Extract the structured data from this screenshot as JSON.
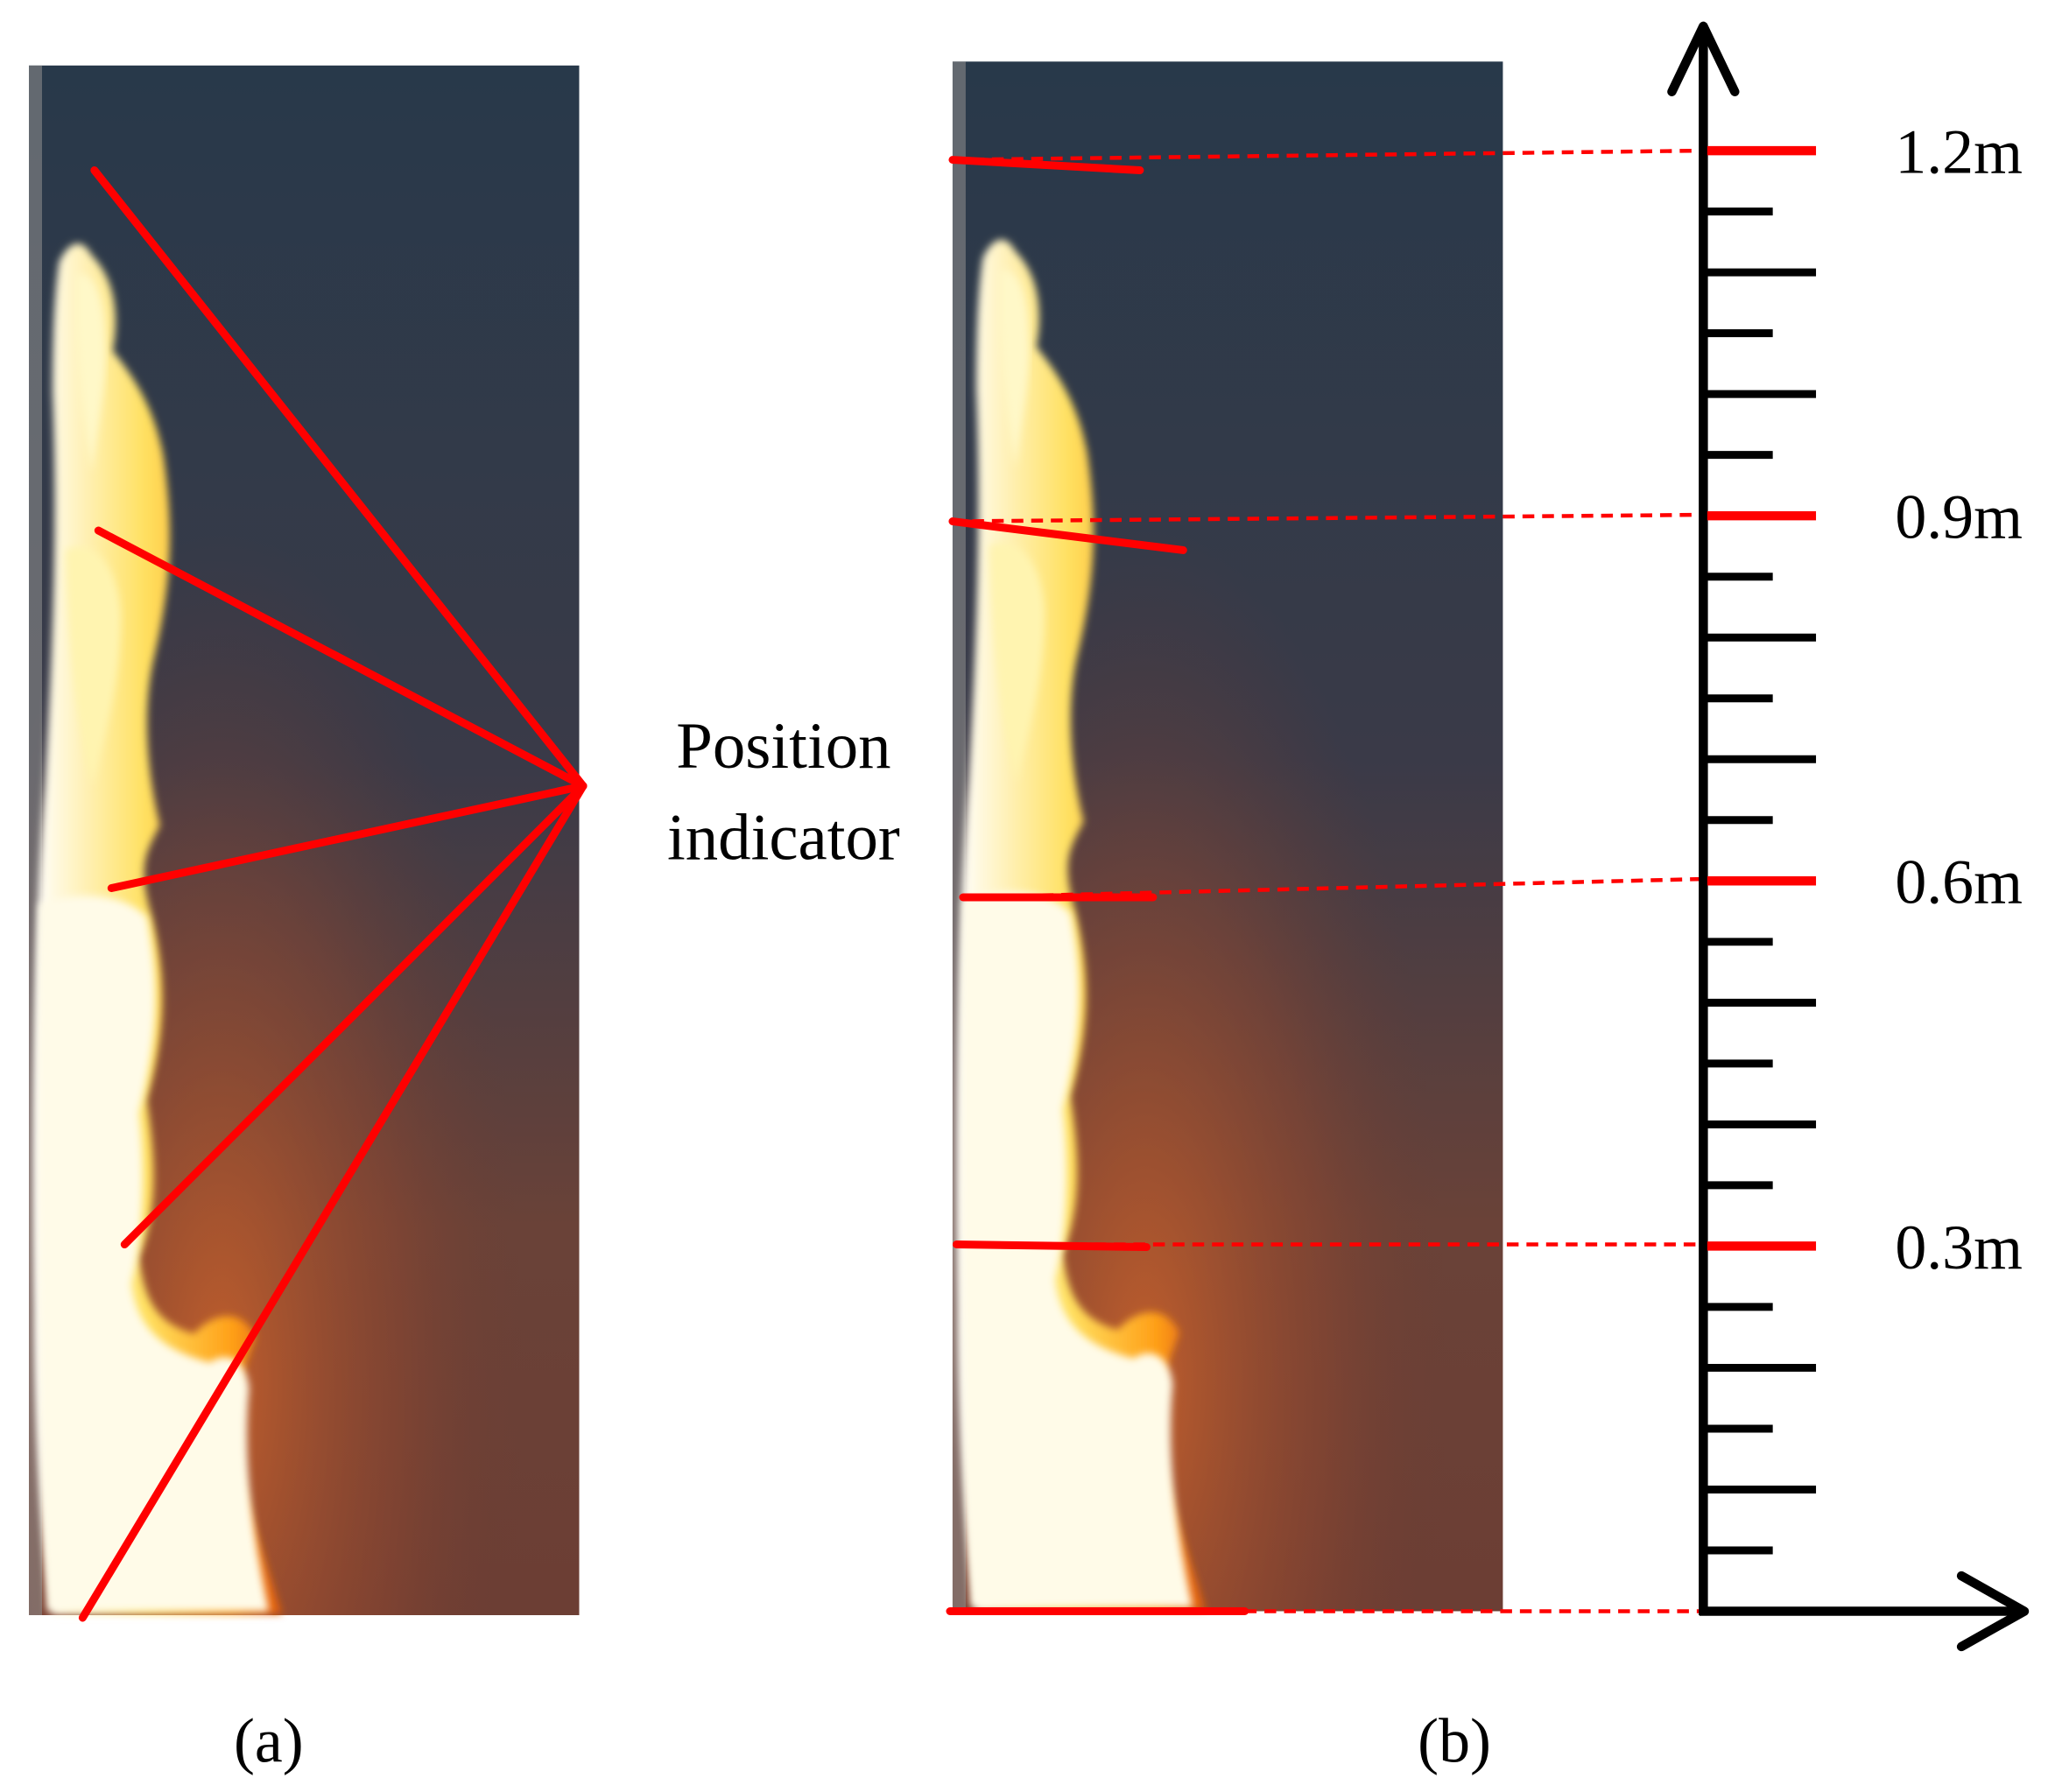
{
  "panel_a": {
    "annotation": [
      "Position",
      "indicator"
    ],
    "label": "(a)"
  },
  "panel_b": {
    "scale_labels": [
      "1.2m",
      "0.9m",
      "0.6m",
      "0.3m"
    ],
    "label": "(b)"
  }
}
